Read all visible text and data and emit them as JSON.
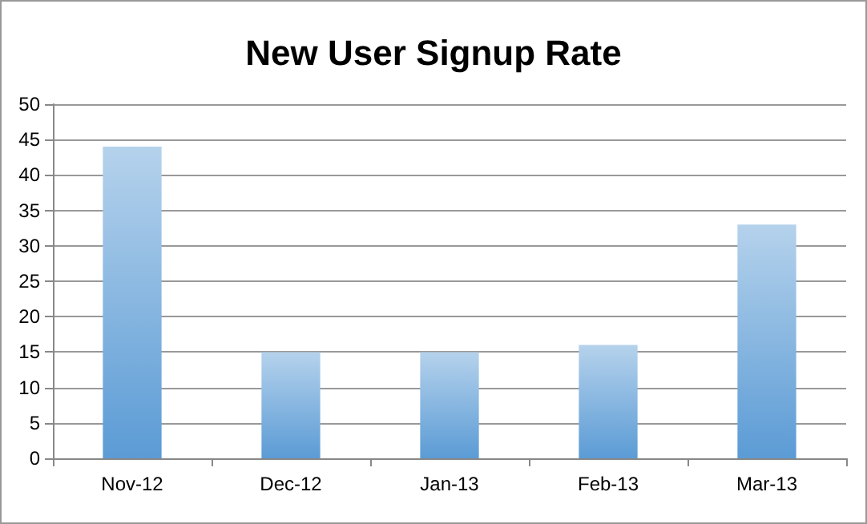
{
  "chart_data": {
    "type": "bar",
    "title": "New User Signup Rate",
    "categories": [
      "Nov-12",
      "Dec-12",
      "Jan-13",
      "Feb-13",
      "Mar-13"
    ],
    "values": [
      44,
      15,
      15,
      16,
      33
    ],
    "color": "#5b9bd5",
    "ylim": [
      0,
      50
    ],
    "yticks": [
      0,
      5,
      10,
      15,
      20,
      25,
      30,
      35,
      40,
      45,
      50
    ],
    "grid": "y"
  }
}
